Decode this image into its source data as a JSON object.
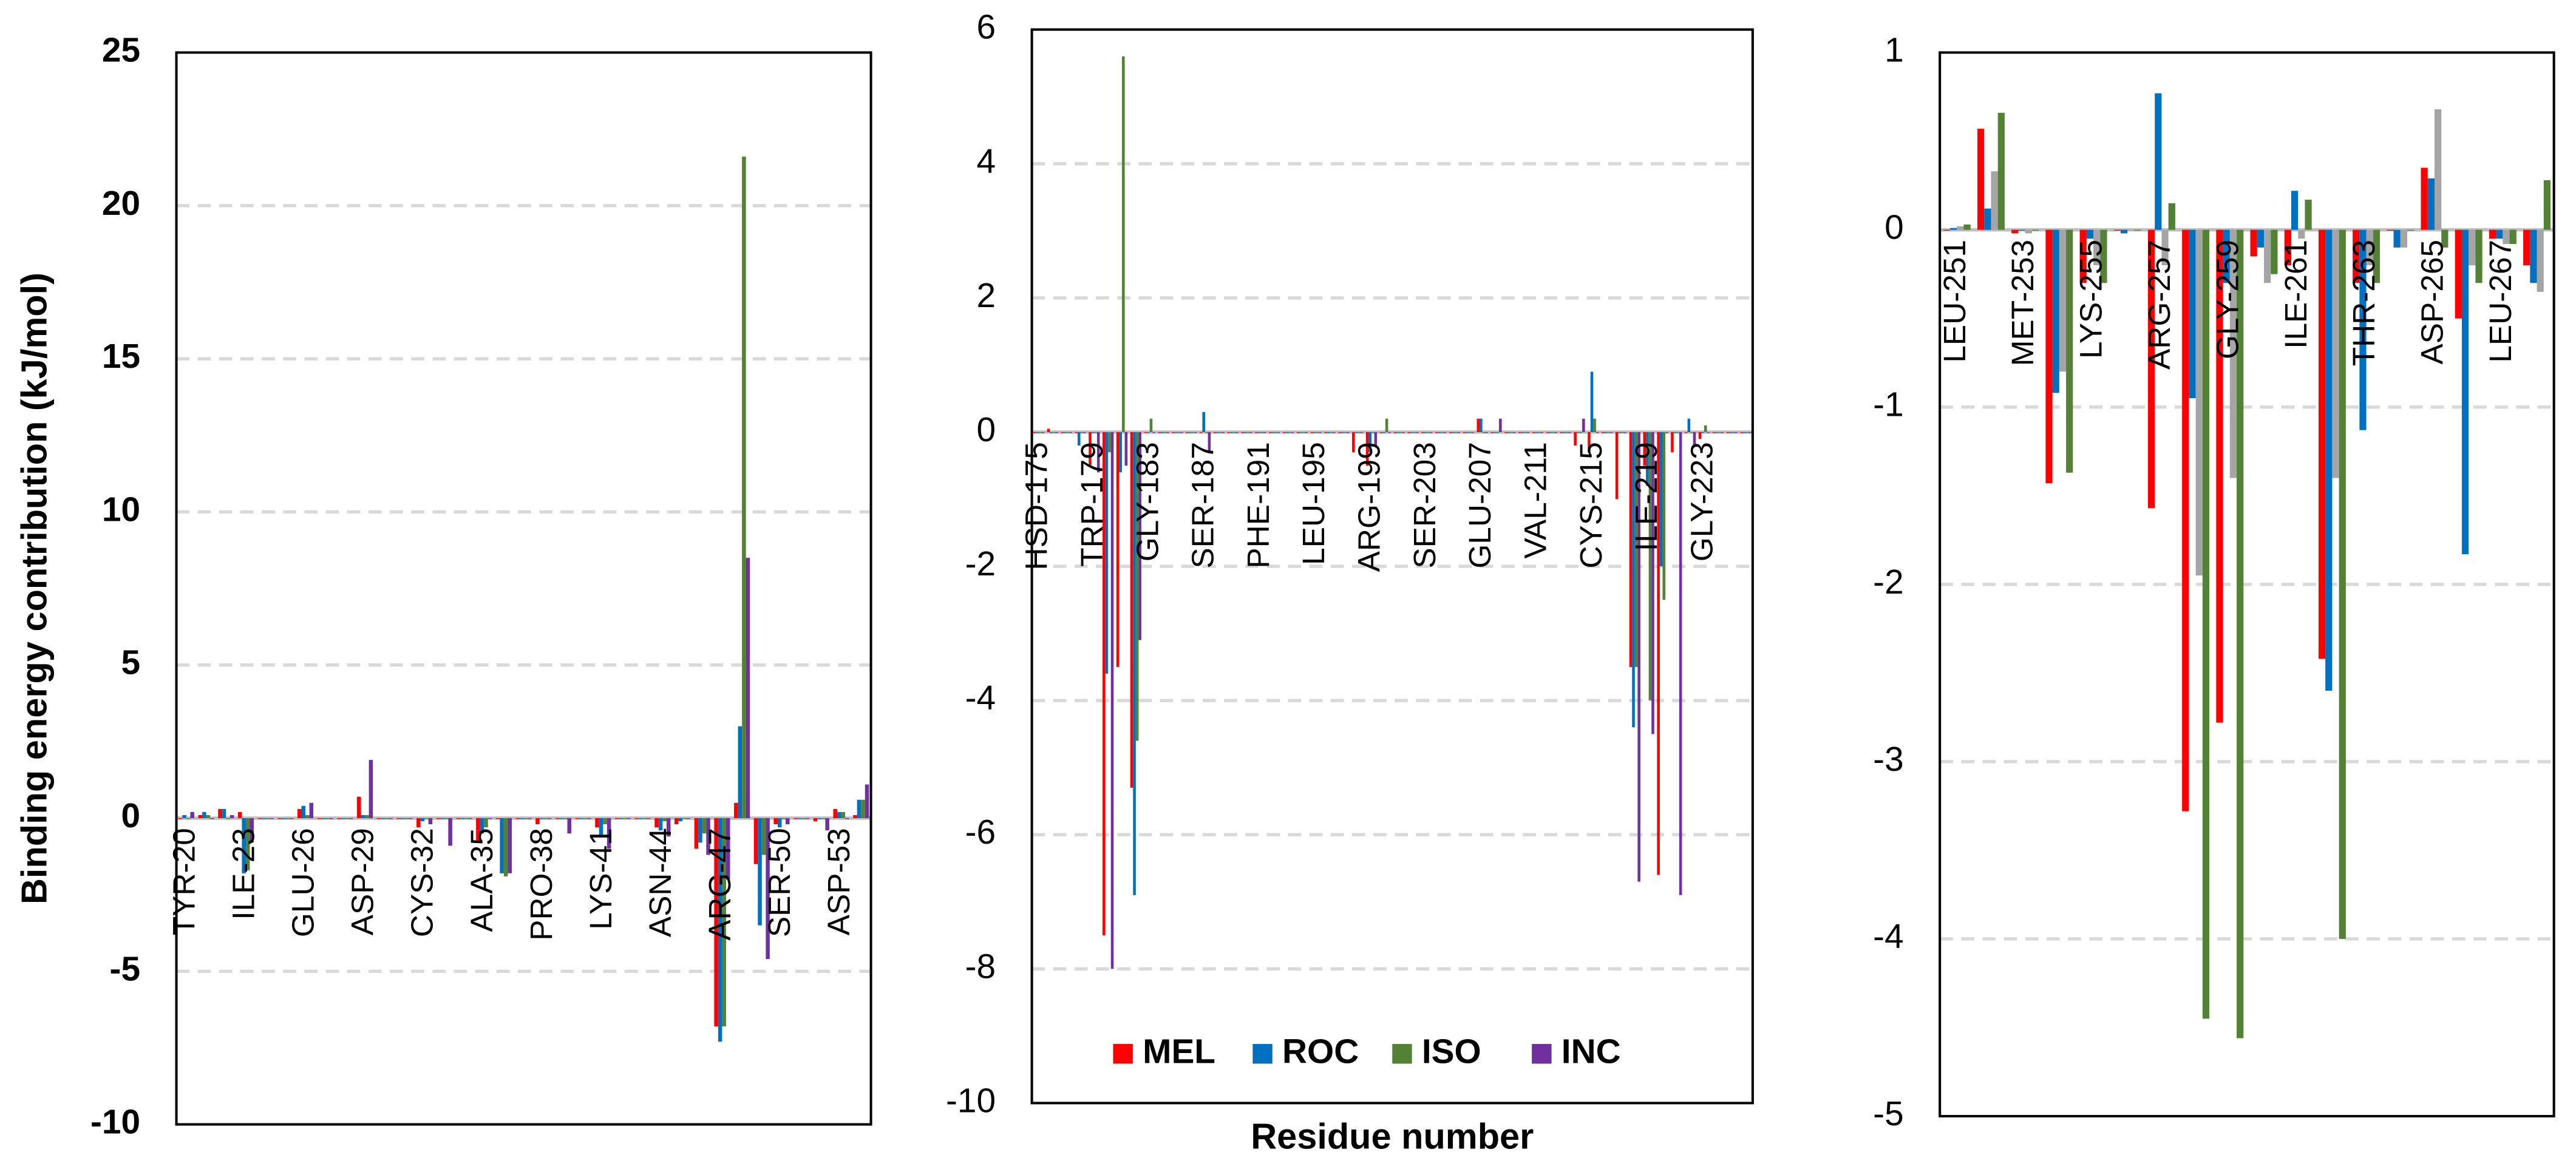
{
  "chart_data": [
    {
      "type": "bar",
      "y_label": "Binding energy contribution (kJ/mol)",
      "ylim": [
        -10,
        25
      ],
      "yticks": [
        -10,
        -5,
        0,
        5,
        10,
        15,
        20,
        25
      ],
      "grid": true,
      "categories": [
        "TYR-20",
        null,
        null,
        "ILE-23",
        null,
        null,
        "GLU-26",
        null,
        null,
        "ASP-29",
        null,
        null,
        "CYS-32",
        null,
        null,
        "ALA-35",
        null,
        null,
        "PRO-38",
        null,
        null,
        "LYS-41",
        null,
        null,
        "ASN-44",
        null,
        null,
        "ARG-47",
        null,
        null,
        "SER-50",
        null,
        null,
        "ASP-53",
        null
      ],
      "series": [
        {
          "color": "#ff0000",
          "values": [
            0,
            0.1,
            0.3,
            0.2,
            0,
            0,
            0.3,
            0,
            0,
            0.7,
            0,
            0,
            -0.3,
            0,
            0,
            -0.8,
            0,
            0,
            -0.2,
            0,
            0,
            -0.3,
            0,
            0,
            -0.3,
            -0.2,
            -1.0,
            -6.8,
            0.5,
            -1.5,
            -0.2,
            0,
            -0.1,
            0.3,
            0.1
          ]
        },
        {
          "color": "#0070c0",
          "values": [
            0.1,
            0.2,
            0.3,
            -1.8,
            0,
            0,
            0.4,
            0,
            0,
            0.1,
            0,
            0,
            -0.1,
            0,
            0,
            -0.5,
            -1.8,
            0,
            0,
            0,
            0,
            -0.6,
            0,
            0,
            -0.4,
            -0.1,
            -0.8,
            -7.3,
            3.0,
            -3.5,
            -0.3,
            0,
            0,
            0.2,
            0.6
          ]
        },
        {
          "color": "#548235",
          "values": [
            0,
            0.1,
            0,
            -1.7,
            0,
            0,
            0.1,
            0,
            0,
            0.1,
            0,
            0,
            0,
            0,
            0,
            -0.3,
            -1.9,
            0,
            0,
            0,
            0,
            -0.2,
            0,
            0,
            -0.1,
            0,
            -0.5,
            -6.8,
            21.6,
            -1.2,
            0,
            0,
            0,
            0.2,
            0.6
          ]
        },
        {
          "color": "#7030a0",
          "values": [
            0.2,
            0,
            0.1,
            -0.8,
            0,
            0,
            0.5,
            0,
            0,
            1.9,
            0,
            0,
            -0.2,
            -0.9,
            0,
            0,
            -1.8,
            0,
            0,
            -0.5,
            0,
            -1.0,
            0,
            0,
            -0.6,
            0,
            -1.2,
            -2.0,
            8.5,
            -4.6,
            -0.2,
            0,
            -0.4,
            0,
            1.1
          ]
        }
      ]
    },
    {
      "type": "bar",
      "x_label": "Residue number",
      "legend": "bottom",
      "ylim": [
        -10,
        6
      ],
      "yticks": [
        -10,
        -8,
        -6,
        -4,
        -2,
        0,
        2,
        4,
        6
      ],
      "grid": true,
      "categories": [
        "HSD-175",
        null,
        null,
        null,
        "TRP-179",
        null,
        null,
        null,
        "GLY-183",
        null,
        null,
        null,
        "SER-187",
        null,
        null,
        null,
        "PHE-191",
        null,
        null,
        null,
        "LEU-195",
        null,
        null,
        null,
        "ARG-199",
        null,
        null,
        null,
        "SER-203",
        null,
        null,
        null,
        "GLU-207",
        null,
        null,
        null,
        "VAL-211",
        null,
        null,
        null,
        "CYS-215",
        null,
        null,
        null,
        "ILE-219",
        null,
        null,
        null,
        "GLY-223",
        null,
        null,
        null
      ],
      "series": [
        {
          "name": "MEL",
          "color": "#ff0000",
          "values": [
            0,
            0.05,
            0,
            0,
            -0.5,
            -7.5,
            -3.5,
            -5.3,
            0,
            0,
            0,
            0,
            0,
            0,
            0,
            0,
            0,
            0,
            0,
            0,
            0,
            0,
            0,
            -0.3,
            -0.5,
            0,
            0,
            0,
            0,
            0,
            0,
            0,
            0.2,
            0,
            0,
            0,
            0,
            0,
            0,
            -0.2,
            -0.3,
            0,
            -1.0,
            -3.5,
            -0.5,
            -6.6,
            -0.3,
            0,
            -0.1,
            0,
            0,
            0
          ]
        },
        {
          "name": "ROC",
          "color": "#0070c0",
          "values": [
            0,
            0,
            0,
            -0.2,
            0,
            -3.6,
            -0.6,
            -6.9,
            0,
            0,
            0,
            0,
            0.3,
            0,
            0,
            0,
            0,
            0,
            0,
            0,
            0,
            0,
            0,
            0,
            -0.3,
            0,
            0,
            0,
            0,
            0,
            0,
            0,
            0.2,
            0,
            0,
            0,
            0,
            0,
            0,
            0,
            0.9,
            0,
            0,
            -4.4,
            -0.8,
            -2.0,
            0,
            0.2,
            0,
            0,
            0,
            0
          ]
        },
        {
          "name": "ISO",
          "color": "#548235",
          "values": [
            0,
            0,
            0,
            0,
            0,
            -0.3,
            5.6,
            -4.6,
            0.2,
            0,
            0,
            0,
            0,
            0,
            0,
            0,
            0,
            0,
            0,
            0,
            0,
            0,
            0,
            0,
            0,
            0.2,
            0,
            0,
            0,
            0,
            0,
            0,
            0,
            0,
            0,
            0,
            0,
            0,
            0,
            0,
            0.2,
            0,
            0,
            -3.5,
            -4.0,
            -2.5,
            0,
            0,
            0.1,
            0,
            0,
            0
          ]
        },
        {
          "name": "INC",
          "color": "#7030a0",
          "values": [
            0,
            0,
            0,
            0,
            -0.6,
            -8.0,
            -0.5,
            -3.1,
            0,
            0,
            0,
            0,
            -0.3,
            0,
            0,
            0,
            0,
            0,
            0,
            0,
            0,
            0,
            0,
            0,
            -0.2,
            0,
            0,
            0,
            0,
            0,
            0,
            0,
            0,
            0.2,
            0,
            0,
            0,
            0,
            0,
            0.2,
            0,
            0,
            0,
            -6.7,
            -4.5,
            0,
            -6.9,
            -0.2,
            0,
            0,
            0,
            0
          ]
        }
      ]
    },
    {
      "type": "bar",
      "ylim": [
        -5,
        1
      ],
      "yticks": [
        -5,
        -4,
        -3,
        -2,
        -1,
        0,
        1
      ],
      "grid": true,
      "categories": [
        "LEU-251",
        null,
        "MET-253",
        null,
        "LYS-255",
        null,
        "ARG-257",
        null,
        "GLY-259",
        null,
        "ILE-261",
        null,
        "THR-263",
        null,
        "ASP-265",
        null,
        "LEU-267",
        null
      ],
      "series": [
        {
          "color": "#ff0000",
          "values": [
            0,
            0.57,
            -0.02,
            -1.43,
            -0.3,
            0,
            -1.57,
            -3.28,
            -2.78,
            -0.15,
            -0.2,
            -2.42,
            -0.3,
            0,
            0.35,
            -0.5,
            -0.05,
            -0.2
          ]
        },
        {
          "color": "#0070c0",
          "values": [
            0.01,
            0.12,
            0,
            -0.92,
            -0.05,
            -0.02,
            0.77,
            -0.95,
            -0.3,
            -0.1,
            0.22,
            -2.6,
            -1.13,
            -0.1,
            0.29,
            -1.83,
            -0.05,
            -0.3
          ]
        },
        {
          "color": "#a5a5a5",
          "values": [
            0.02,
            0.33,
            -0.02,
            -0.8,
            -0.2,
            0,
            -0.2,
            -1.95,
            -1.4,
            -0.3,
            -0.05,
            -1.4,
            -0.2,
            -0.1,
            0.68,
            -0.2,
            -0.08,
            -0.35
          ]
        },
        {
          "color": "#548235",
          "values": [
            0.03,
            0.66,
            0,
            -1.37,
            -0.3,
            0,
            0.15,
            -4.45,
            -4.56,
            -0.25,
            0.17,
            -4.0,
            -0.3,
            0,
            -0.1,
            -0.3,
            -0.08,
            0.28
          ]
        }
      ]
    }
  ]
}
